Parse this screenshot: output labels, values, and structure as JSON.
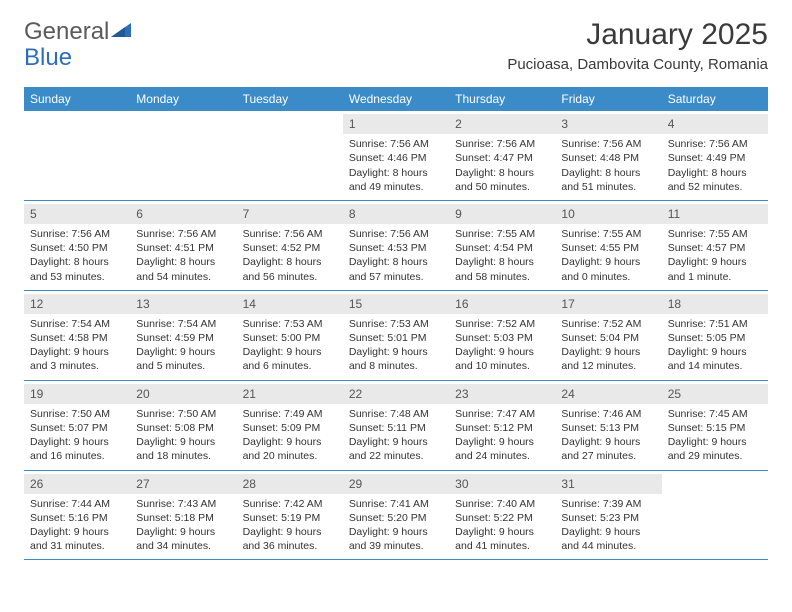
{
  "logo": {
    "text1": "General",
    "text2": "Blue"
  },
  "title": "January 2025",
  "location": "Pucioasa, Dambovita County, Romania",
  "colors": {
    "header_bg": "#3b8bc9",
    "header_fg": "#ffffff",
    "daynum_bg": "#e9e9e9",
    "rule": "#3b8bc9",
    "text": "#333333",
    "logo_gray": "#5a5a5a",
    "logo_blue": "#2d6fb6"
  },
  "day_labels": [
    "Sunday",
    "Monday",
    "Tuesday",
    "Wednesday",
    "Thursday",
    "Friday",
    "Saturday"
  ],
  "weeks": [
    [
      null,
      null,
      null,
      {
        "n": "1",
        "sr": "7:56 AM",
        "ss": "4:46 PM",
        "dl1": "8 hours",
        "dl2": "and 49 minutes."
      },
      {
        "n": "2",
        "sr": "7:56 AM",
        "ss": "4:47 PM",
        "dl1": "8 hours",
        "dl2": "and 50 minutes."
      },
      {
        "n": "3",
        "sr": "7:56 AM",
        "ss": "4:48 PM",
        "dl1": "8 hours",
        "dl2": "and 51 minutes."
      },
      {
        "n": "4",
        "sr": "7:56 AM",
        "ss": "4:49 PM",
        "dl1": "8 hours",
        "dl2": "and 52 minutes."
      }
    ],
    [
      {
        "n": "5",
        "sr": "7:56 AM",
        "ss": "4:50 PM",
        "dl1": "8 hours",
        "dl2": "and 53 minutes."
      },
      {
        "n": "6",
        "sr": "7:56 AM",
        "ss": "4:51 PM",
        "dl1": "8 hours",
        "dl2": "and 54 minutes."
      },
      {
        "n": "7",
        "sr": "7:56 AM",
        "ss": "4:52 PM",
        "dl1": "8 hours",
        "dl2": "and 56 minutes."
      },
      {
        "n": "8",
        "sr": "7:56 AM",
        "ss": "4:53 PM",
        "dl1": "8 hours",
        "dl2": "and 57 minutes."
      },
      {
        "n": "9",
        "sr": "7:55 AM",
        "ss": "4:54 PM",
        "dl1": "8 hours",
        "dl2": "and 58 minutes."
      },
      {
        "n": "10",
        "sr": "7:55 AM",
        "ss": "4:55 PM",
        "dl1": "9 hours",
        "dl2": "and 0 minutes."
      },
      {
        "n": "11",
        "sr": "7:55 AM",
        "ss": "4:57 PM",
        "dl1": "9 hours",
        "dl2": "and 1 minute."
      }
    ],
    [
      {
        "n": "12",
        "sr": "7:54 AM",
        "ss": "4:58 PM",
        "dl1": "9 hours",
        "dl2": "and 3 minutes."
      },
      {
        "n": "13",
        "sr": "7:54 AM",
        "ss": "4:59 PM",
        "dl1": "9 hours",
        "dl2": "and 5 minutes."
      },
      {
        "n": "14",
        "sr": "7:53 AM",
        "ss": "5:00 PM",
        "dl1": "9 hours",
        "dl2": "and 6 minutes."
      },
      {
        "n": "15",
        "sr": "7:53 AM",
        "ss": "5:01 PM",
        "dl1": "9 hours",
        "dl2": "and 8 minutes."
      },
      {
        "n": "16",
        "sr": "7:52 AM",
        "ss": "5:03 PM",
        "dl1": "9 hours",
        "dl2": "and 10 minutes."
      },
      {
        "n": "17",
        "sr": "7:52 AM",
        "ss": "5:04 PM",
        "dl1": "9 hours",
        "dl2": "and 12 minutes."
      },
      {
        "n": "18",
        "sr": "7:51 AM",
        "ss": "5:05 PM",
        "dl1": "9 hours",
        "dl2": "and 14 minutes."
      }
    ],
    [
      {
        "n": "19",
        "sr": "7:50 AM",
        "ss": "5:07 PM",
        "dl1": "9 hours",
        "dl2": "and 16 minutes."
      },
      {
        "n": "20",
        "sr": "7:50 AM",
        "ss": "5:08 PM",
        "dl1": "9 hours",
        "dl2": "and 18 minutes."
      },
      {
        "n": "21",
        "sr": "7:49 AM",
        "ss": "5:09 PM",
        "dl1": "9 hours",
        "dl2": "and 20 minutes."
      },
      {
        "n": "22",
        "sr": "7:48 AM",
        "ss": "5:11 PM",
        "dl1": "9 hours",
        "dl2": "and 22 minutes."
      },
      {
        "n": "23",
        "sr": "7:47 AM",
        "ss": "5:12 PM",
        "dl1": "9 hours",
        "dl2": "and 24 minutes."
      },
      {
        "n": "24",
        "sr": "7:46 AM",
        "ss": "5:13 PM",
        "dl1": "9 hours",
        "dl2": "and 27 minutes."
      },
      {
        "n": "25",
        "sr": "7:45 AM",
        "ss": "5:15 PM",
        "dl1": "9 hours",
        "dl2": "and 29 minutes."
      }
    ],
    [
      {
        "n": "26",
        "sr": "7:44 AM",
        "ss": "5:16 PM",
        "dl1": "9 hours",
        "dl2": "and 31 minutes."
      },
      {
        "n": "27",
        "sr": "7:43 AM",
        "ss": "5:18 PM",
        "dl1": "9 hours",
        "dl2": "and 34 minutes."
      },
      {
        "n": "28",
        "sr": "7:42 AM",
        "ss": "5:19 PM",
        "dl1": "9 hours",
        "dl2": "and 36 minutes."
      },
      {
        "n": "29",
        "sr": "7:41 AM",
        "ss": "5:20 PM",
        "dl1": "9 hours",
        "dl2": "and 39 minutes."
      },
      {
        "n": "30",
        "sr": "7:40 AM",
        "ss": "5:22 PM",
        "dl1": "9 hours",
        "dl2": "and 41 minutes."
      },
      {
        "n": "31",
        "sr": "7:39 AM",
        "ss": "5:23 PM",
        "dl1": "9 hours",
        "dl2": "and 44 minutes."
      },
      null
    ]
  ],
  "labels": {
    "sunrise": "Sunrise:",
    "sunset": "Sunset:",
    "daylight": "Daylight:"
  }
}
